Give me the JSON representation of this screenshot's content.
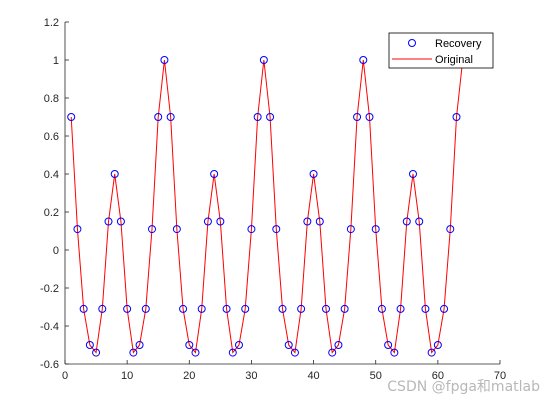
{
  "chart_data": {
    "type": "line",
    "title": "",
    "xlabel": "",
    "ylabel": "",
    "xlim": [
      0,
      70
    ],
    "ylim": [
      -0.6,
      1.2
    ],
    "xticks": [
      0,
      10,
      20,
      30,
      40,
      50,
      60,
      70
    ],
    "yticks": [
      -0.6,
      -0.4,
      -0.2,
      0,
      0.2,
      0.4,
      0.6,
      0.8,
      1,
      1.2
    ],
    "xtick_labels": [
      "0",
      "10",
      "20",
      "30",
      "40",
      "50",
      "60",
      "70"
    ],
    "ytick_labels": [
      "-0.6",
      "-0.4",
      "-0.2",
      "0",
      "0.2",
      "0.4",
      "0.6",
      "0.8",
      "1",
      "1.2"
    ],
    "grid": false,
    "legend_position": "top-right",
    "x": [
      1,
      2,
      3,
      4,
      5,
      6,
      7,
      8,
      9,
      10,
      11,
      12,
      13,
      14,
      15,
      16,
      17,
      18,
      19,
      20,
      21,
      22,
      23,
      24,
      25,
      26,
      27,
      28,
      29,
      30,
      31,
      32,
      33,
      34,
      35,
      36,
      37,
      38,
      39,
      40,
      41,
      42,
      43,
      44,
      45,
      46,
      47,
      48,
      49,
      50,
      51,
      52,
      53,
      54,
      55,
      56,
      57,
      58,
      59,
      60,
      61,
      62,
      63,
      64
    ],
    "series": [
      {
        "name": "Recovery",
        "style": "markers",
        "marker": "circle",
        "color": "#0000ff",
        "values": [
          0.7,
          0.11,
          -0.31,
          -0.5,
          -0.54,
          -0.31,
          0.15,
          0.4,
          0.15,
          -0.31,
          -0.54,
          -0.5,
          -0.31,
          0.11,
          0.7,
          1,
          0.7,
          0.11,
          -0.31,
          -0.5,
          -0.54,
          -0.31,
          0.15,
          0.4,
          0.15,
          -0.31,
          -0.54,
          -0.5,
          -0.31,
          0.11,
          0.7,
          1,
          0.7,
          0.11,
          -0.31,
          -0.5,
          -0.54,
          -0.31,
          0.15,
          0.4,
          0.15,
          -0.31,
          -0.54,
          -0.5,
          -0.31,
          0.11,
          0.7,
          1,
          0.7,
          0.11,
          -0.31,
          -0.5,
          -0.54,
          -0.31,
          0.15,
          0.4,
          0.15,
          -0.31,
          -0.54,
          -0.5,
          -0.31,
          0.11,
          0.7,
          1
        ]
      },
      {
        "name": "Original",
        "style": "line",
        "color": "#ff0000",
        "values": [
          0.7,
          0.11,
          -0.31,
          -0.5,
          -0.54,
          -0.31,
          0.15,
          0.4,
          0.15,
          -0.31,
          -0.54,
          -0.5,
          -0.31,
          0.11,
          0.7,
          1,
          0.7,
          0.11,
          -0.31,
          -0.5,
          -0.54,
          -0.31,
          0.15,
          0.4,
          0.15,
          -0.31,
          -0.54,
          -0.5,
          -0.31,
          0.11,
          0.7,
          1,
          0.7,
          0.11,
          -0.31,
          -0.5,
          -0.54,
          -0.31,
          0.15,
          0.4,
          0.15,
          -0.31,
          -0.54,
          -0.5,
          -0.31,
          0.11,
          0.7,
          1,
          0.7,
          0.11,
          -0.31,
          -0.5,
          -0.54,
          -0.31,
          0.15,
          0.4,
          0.15,
          -0.31,
          -0.54,
          -0.5,
          -0.31,
          0.11,
          0.7,
          1
        ]
      }
    ]
  },
  "watermark": "CSDN @fpga和matlab"
}
